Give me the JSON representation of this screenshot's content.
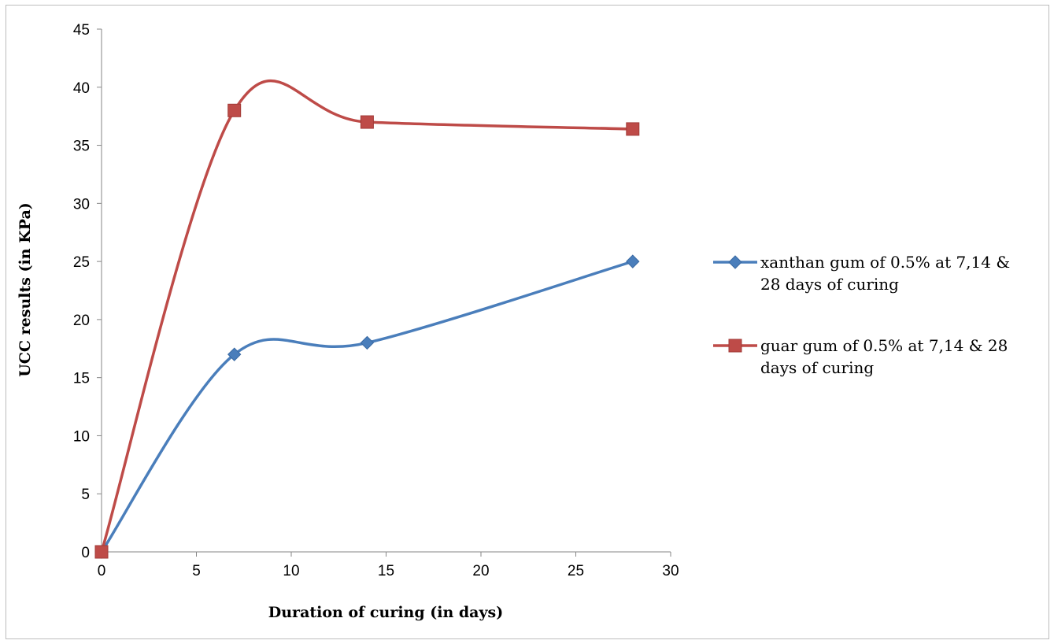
{
  "chart_data": {
    "type": "line",
    "smooth": true,
    "xlabel": "Duration of curing (in days)",
    "ylabel": "UCC results (in KPa)",
    "xlim": [
      0,
      30
    ],
    "ylim": [
      0,
      45
    ],
    "xticks": [
      0,
      5,
      10,
      15,
      20,
      25,
      30
    ],
    "yticks": [
      0,
      5,
      10,
      15,
      20,
      25,
      30,
      35,
      40,
      45
    ],
    "grid": false,
    "legend_position": "right",
    "series": [
      {
        "name": "xanthan gum of 0.5% at 7,14 & 28 days of curing",
        "legend_lines": [
          "xanthan gum of 0.5% at 7,14 &",
          "28 days of curing"
        ],
        "marker": "diamond",
        "color": "#4a7ebb",
        "x": [
          0,
          7,
          14,
          28
        ],
        "y": [
          0,
          17,
          18,
          25
        ]
      },
      {
        "name": "guar gum of 0.5% at 7,14 & 28 days of curing",
        "legend_lines": [
          "guar gum of 0.5% at 7,14 & 28",
          "days of curing"
        ],
        "marker": "square",
        "color": "#be4b48",
        "x": [
          0,
          7,
          14,
          28
        ],
        "y": [
          0,
          38,
          37,
          36.4
        ]
      }
    ]
  }
}
